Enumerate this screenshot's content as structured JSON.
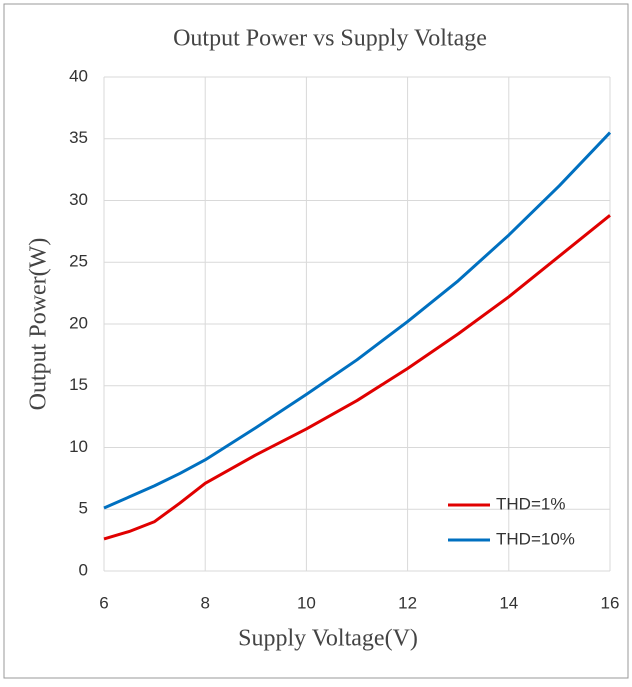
{
  "chart_data": {
    "type": "line",
    "title": "Output Power vs Supply Voltage",
    "x_label": "Supply Voltage(V)",
    "y_label": "Output Power(W)",
    "x": [
      6,
      6.5,
      7,
      7.5,
      8,
      9,
      10,
      11,
      12,
      13,
      14,
      15,
      16
    ],
    "series": [
      {
        "name": "THD=1%",
        "color": "#e00000",
        "values": [
          2.6,
          3.2,
          4.0,
          5.5,
          7.1,
          9.4,
          11.5,
          13.8,
          16.4,
          19.2,
          22.2,
          25.5,
          28.8
        ]
      },
      {
        "name": "THD=10%",
        "color": "#0070c0",
        "values": [
          5.1,
          6.0,
          6.9,
          7.9,
          9.0,
          11.6,
          14.3,
          17.1,
          20.2,
          23.5,
          27.2,
          31.2,
          35.5
        ]
      }
    ],
    "xlim": [
      6,
      16
    ],
    "xticks": [
      6,
      8,
      10,
      12,
      14,
      16
    ],
    "ylim": [
      0,
      40
    ],
    "yticks": [
      0,
      5,
      10,
      15,
      20,
      25,
      30,
      35,
      40
    ],
    "grid": true,
    "legend": "lower right"
  }
}
